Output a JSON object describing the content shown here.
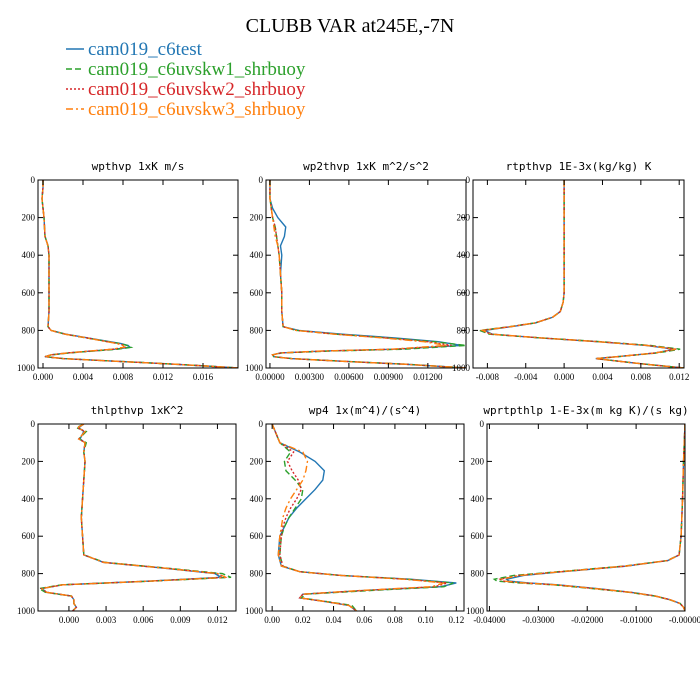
{
  "figure": {
    "title": "CLUBB VAR at245E,-7N"
  },
  "legend": [
    {
      "label": "cam019_c6test",
      "color": "#2277b4",
      "dash": "solid"
    },
    {
      "label": "cam019_c6uvskw1_shrbuoy",
      "color": "#2ca02c",
      "dash": "dash"
    },
    {
      "label": "cam019_c6uvskw2_shrbuoy",
      "color": "#d62728",
      "dash": "dot"
    },
    {
      "label": "cam019_c6uvskw3_shrbuoy",
      "color": "#ff7f0e",
      "dash": "dashdot"
    }
  ],
  "chart_data": [
    {
      "type": "line",
      "title": "wpthvp  1xK m/s",
      "xlim": [
        -0.0005,
        0.0195
      ],
      "ylim": [
        1000,
        0
      ],
      "xticks": [
        0.0,
        0.004,
        0.008,
        0.012,
        0.016
      ],
      "xtick_labels": [
        "0.000",
        "0.004",
        "0.008",
        "0.012",
        "0.016"
      ],
      "yticks": [
        0,
        200,
        400,
        600,
        800,
        1000
      ],
      "ytick_labels": [
        "0",
        "200",
        "400",
        "600",
        "800",
        "1000"
      ],
      "y": [
        0,
        40,
        100,
        150,
        200,
        300,
        350,
        400,
        500,
        600,
        700,
        780,
        800,
        820,
        840,
        860,
        870,
        880,
        890,
        900,
        910,
        920,
        930,
        940,
        950,
        960,
        970,
        980,
        990,
        1000
      ],
      "series": [
        {
          "x": [
            0.0,
            0.0,
            -0.0001,
            0.0,
            0.0001,
            0.0002,
            0.0005,
            0.0006,
            0.0006,
            0.0006,
            0.0006,
            0.0005,
            0.0008,
            0.0023,
            0.0045,
            0.0067,
            0.0078,
            0.0085,
            0.0087,
            0.0072,
            0.0048,
            0.0025,
            0.0008,
            0.0002,
            0.002,
            0.0057,
            0.0095,
            0.0132,
            0.0165,
            0.0195
          ]
        },
        {
          "x": [
            0.0,
            0.0,
            -0.0001,
            0.0,
            0.0001,
            0.0002,
            0.0005,
            0.0006,
            0.0006,
            0.0006,
            0.0006,
            0.0005,
            0.0008,
            0.0022,
            0.0043,
            0.0065,
            0.0077,
            0.0084,
            0.0088,
            0.0075,
            0.005,
            0.0026,
            0.0009,
            0.0002,
            0.0021,
            0.0058,
            0.0096,
            0.0133,
            0.0166,
            0.0195
          ]
        },
        {
          "x": [
            0.0,
            0.0,
            -0.0001,
            0.0,
            0.0001,
            0.0002,
            0.0005,
            0.0006,
            0.0006,
            0.0006,
            0.0006,
            0.0005,
            0.0008,
            0.0022,
            0.0044,
            0.0064,
            0.0075,
            0.0081,
            0.0082,
            0.007,
            0.0047,
            0.0024,
            0.0008,
            0.0002,
            0.002,
            0.0057,
            0.0095,
            0.0132,
            0.0165,
            0.0195
          ]
        },
        {
          "x": [
            0.0,
            0.0,
            -0.0001,
            0.0,
            0.0001,
            0.0002,
            0.0005,
            0.0006,
            0.0006,
            0.0006,
            0.0006,
            0.0005,
            0.0008,
            0.0022,
            0.0044,
            0.0064,
            0.0074,
            0.008,
            0.0081,
            0.0069,
            0.0046,
            0.0024,
            0.0008,
            0.0002,
            0.002,
            0.0057,
            0.0095,
            0.0132,
            0.0165,
            0.0195
          ]
        }
      ]
    },
    {
      "type": "line",
      "title": "wp2thvp  1xK m^2/s^2",
      "xlim": [
        -0.0003,
        0.0149
      ],
      "ylim": [
        1000,
        0
      ],
      "xticks": [
        0.0,
        0.003,
        0.006,
        0.009,
        0.012
      ],
      "xtick_labels": [
        "0.00000",
        "0.00300",
        "0.00600",
        "0.00900",
        "0.01200"
      ],
      "yticks": [
        0,
        200,
        400,
        600,
        800,
        1000
      ],
      "ytick_labels": [
        "0",
        "200",
        "400",
        "600",
        "800",
        "1000"
      ],
      "y": [
        0,
        50,
        100,
        150,
        200,
        250,
        300,
        350,
        400,
        500,
        600,
        700,
        780,
        800,
        820,
        840,
        860,
        880,
        900,
        910,
        920,
        930,
        940,
        950,
        960,
        970,
        980,
        1000
      ],
      "series": [
        {
          "x": [
            0.0,
            0.0,
            0.0,
            0.0002,
            0.0006,
            0.0012,
            0.0011,
            0.0008,
            0.0009,
            0.0008,
            0.0009,
            0.0009,
            0.001,
            0.0022,
            0.0055,
            0.0095,
            0.0128,
            0.0146,
            0.0095,
            0.004,
            0.0008,
            0.0002,
            0.0003,
            0.0016,
            0.0043,
            0.0072,
            0.0103,
            0.0149
          ]
        },
        {
          "x": [
            0.0,
            0.0,
            0.0,
            0.0001,
            0.0002,
            0.0004,
            0.0005,
            0.0006,
            0.0007,
            0.0008,
            0.0009,
            0.0009,
            0.001,
            0.002,
            0.005,
            0.009,
            0.0125,
            0.0149,
            0.0102,
            0.0045,
            0.0009,
            0.0002,
            0.0003,
            0.0017,
            0.0044,
            0.0073,
            0.0104,
            0.0149
          ]
        },
        {
          "x": [
            0.0,
            0.0,
            0.0,
            0.0001,
            0.0002,
            0.0004,
            0.0005,
            0.0006,
            0.0007,
            0.0008,
            0.0009,
            0.0009,
            0.001,
            0.002,
            0.005,
            0.0088,
            0.012,
            0.0138,
            0.0095,
            0.004,
            0.0008,
            0.0002,
            0.0003,
            0.0016,
            0.0043,
            0.0072,
            0.0103,
            0.0149
          ]
        },
        {
          "x": [
            0.0,
            0.0,
            0.0,
            0.0001,
            0.0002,
            0.0003,
            0.0004,
            0.0006,
            0.0007,
            0.0008,
            0.0009,
            0.0009,
            0.001,
            0.002,
            0.0049,
            0.0086,
            0.0117,
            0.0134,
            0.0092,
            0.0038,
            0.0008,
            0.0002,
            0.0003,
            0.0016,
            0.0043,
            0.0072,
            0.0103,
            0.0149
          ]
        }
      ]
    },
    {
      "type": "line",
      "title": "rtpthvp  1E-3x(kg/kg) K",
      "xlim": [
        -0.0095,
        0.0125
      ],
      "ylim": [
        1000,
        0
      ],
      "xticks": [
        -0.008,
        -0.004,
        0.0,
        0.004,
        0.008,
        0.012
      ],
      "xtick_labels": [
        "-0.008",
        "-0.004",
        "0.000",
        "0.004",
        "0.008",
        "0.012"
      ],
      "yticks": [
        0,
        200,
        400,
        600,
        800,
        1000
      ],
      "ytick_labels": [
        "0",
        "200",
        "400",
        "600",
        "800",
        "1000"
      ],
      "y": [
        0,
        200,
        400,
        600,
        650,
        700,
        730,
        760,
        780,
        800,
        820,
        840,
        860,
        880,
        900,
        920,
        940,
        950,
        960,
        980,
        1000
      ],
      "series": [
        {
          "x": [
            0.0,
            0.0,
            0.0,
            0.0,
            -0.0001,
            -0.0004,
            -0.0012,
            -0.003,
            -0.0055,
            -0.0083,
            -0.0075,
            -0.0025,
            0.0035,
            0.0085,
            0.0115,
            0.0095,
            0.0055,
            0.0033,
            0.005,
            0.0085,
            0.0125
          ]
        },
        {
          "x": [
            0.0,
            0.0,
            0.0,
            0.0,
            -0.0001,
            -0.0004,
            -0.0012,
            -0.003,
            -0.0057,
            -0.0088,
            -0.0078,
            -0.0024,
            0.0038,
            0.009,
            0.0121,
            0.0097,
            0.0056,
            0.0033,
            0.005,
            0.0085,
            0.0125
          ]
        },
        {
          "x": [
            0.0,
            0.0,
            0.0,
            0.0,
            -0.0001,
            -0.0004,
            -0.0012,
            -0.003,
            -0.0056,
            -0.0086,
            -0.0076,
            -0.0024,
            0.0036,
            0.0087,
            0.0117,
            0.0095,
            0.0055,
            0.0033,
            0.005,
            0.0085,
            0.0125
          ]
        },
        {
          "x": [
            0.0,
            0.0,
            0.0,
            0.0,
            -0.0001,
            -0.0004,
            -0.0012,
            -0.003,
            -0.0056,
            -0.0085,
            -0.0076,
            -0.0024,
            0.0035,
            0.0086,
            0.0116,
            0.0095,
            0.0055,
            0.0033,
            0.005,
            0.0085,
            0.0125
          ]
        }
      ]
    },
    {
      "type": "line",
      "title": "thlpthvp  1xK^2",
      "xlim": [
        -0.0025,
        0.0135
      ],
      "ylim": [
        1000,
        0
      ],
      "xticks": [
        0.0,
        0.003,
        0.006,
        0.009,
        0.012
      ],
      "xtick_labels": [
        "0.000",
        "0.003",
        "0.006",
        "0.009",
        "0.012"
      ],
      "yticks": [
        0,
        200,
        400,
        600,
        800,
        1000
      ],
      "ytick_labels": [
        "0",
        "200",
        "400",
        "600",
        "800",
        "1000"
      ],
      "y": [
        0,
        20,
        40,
        80,
        100,
        150,
        200,
        300,
        400,
        500,
        600,
        700,
        740,
        770,
        800,
        820,
        840,
        860,
        880,
        900,
        920,
        940,
        960,
        980,
        1000
      ],
      "series": [
        {
          "x": [
            0.0012,
            0.0008,
            0.0012,
            0.0009,
            0.0013,
            0.0012,
            0.0013,
            0.0012,
            0.0011,
            0.001,
            0.0011,
            0.0012,
            0.0028,
            0.0075,
            0.0118,
            0.0123,
            0.0065,
            -0.0005,
            -0.0022,
            -0.0018,
            0.0002,
            0.0004,
            0.0004,
            0.0006,
            0.0003
          ]
        },
        {
          "x": [
            0.0012,
            0.0006,
            0.0014,
            0.0008,
            0.0014,
            0.0012,
            0.0013,
            0.0012,
            0.0011,
            0.001,
            0.0011,
            0.0012,
            0.0029,
            0.0078,
            0.0124,
            0.0131,
            0.0068,
            -0.0006,
            -0.0024,
            -0.0019,
            0.0002,
            0.0004,
            0.0004,
            0.0006,
            0.0003
          ]
        },
        {
          "x": [
            0.0012,
            0.0007,
            0.0013,
            0.0008,
            0.0013,
            0.0012,
            0.0013,
            0.0012,
            0.0011,
            0.001,
            0.0011,
            0.0012,
            0.0028,
            0.0076,
            0.012,
            0.0126,
            0.0066,
            -0.0005,
            -0.0022,
            -0.0018,
            0.0002,
            0.0004,
            0.0004,
            0.0006,
            0.0003
          ]
        },
        {
          "x": [
            0.0012,
            0.0007,
            0.0013,
            0.0008,
            0.0013,
            0.0012,
            0.0013,
            0.0012,
            0.0011,
            0.001,
            0.0011,
            0.0012,
            0.0028,
            0.0076,
            0.012,
            0.0127,
            0.0066,
            -0.0005,
            -0.0022,
            -0.0018,
            0.0002,
            0.0004,
            0.0004,
            0.0006,
            0.0003
          ]
        }
      ]
    },
    {
      "type": "line",
      "title": "wp4  1x(m^4)/(s^4)",
      "xlim": [
        -0.004,
        0.125
      ],
      "ylim": [
        1000,
        0
      ],
      "xticks": [
        0.0,
        0.02,
        0.04,
        0.06,
        0.08,
        0.1,
        0.12
      ],
      "xtick_labels": [
        "0.00",
        "0.02",
        "0.04",
        "0.06",
        "0.08",
        "0.10",
        "0.12"
      ],
      "yticks": [
        0,
        200,
        400,
        600,
        800,
        1000
      ],
      "ytick_labels": [
        "0",
        "200",
        "400",
        "600",
        "800",
        "1000"
      ],
      "y": [
        0,
        100,
        150,
        200,
        250,
        300,
        350,
        400,
        450,
        500,
        550,
        600,
        700,
        760,
        790,
        810,
        830,
        850,
        870,
        890,
        910,
        930,
        950,
        970,
        1000
      ],
      "series": [
        {
          "x": [
            0.0,
            0.005,
            0.018,
            0.028,
            0.034,
            0.033,
            0.028,
            0.022,
            0.016,
            0.011,
            0.008,
            0.005,
            0.004,
            0.006,
            0.018,
            0.045,
            0.09,
            0.12,
            0.11,
            0.06,
            0.02,
            0.018,
            0.035,
            0.05,
            0.055
          ]
        },
        {
          "x": [
            0.0,
            0.005,
            0.012,
            0.008,
            0.009,
            0.015,
            0.02,
            0.019,
            0.015,
            0.011,
            0.008,
            0.006,
            0.005,
            0.007,
            0.018,
            0.045,
            0.088,
            0.118,
            0.112,
            0.065,
            0.022,
            0.019,
            0.036,
            0.052,
            0.055
          ]
        },
        {
          "x": [
            0.0,
            0.005,
            0.014,
            0.01,
            0.013,
            0.017,
            0.019,
            0.016,
            0.012,
            0.009,
            0.007,
            0.006,
            0.005,
            0.007,
            0.018,
            0.045,
            0.087,
            0.114,
            0.106,
            0.06,
            0.02,
            0.018,
            0.035,
            0.05,
            0.055
          ]
        },
        {
          "x": [
            0.0,
            0.005,
            0.02,
            0.023,
            0.022,
            0.02,
            0.016,
            0.012,
            0.009,
            0.007,
            0.006,
            0.005,
            0.004,
            0.006,
            0.018,
            0.045,
            0.086,
            0.112,
            0.104,
            0.058,
            0.02,
            0.018,
            0.035,
            0.05,
            0.055
          ]
        }
      ]
    },
    {
      "type": "line",
      "title": "wprtpthlp  1-E-3x(m kg K)/(s kg)",
      "xlim": [
        -0.0405,
        0.0
      ],
      "ylim": [
        1000,
        0
      ],
      "xticks": [
        -0.04,
        -0.03,
        -0.02,
        -0.01,
        0.0
      ],
      "xtick_labels": [
        "-0.04000",
        "-0.03000",
        "-0.02000",
        "-0.01000",
        "-0.00000"
      ],
      "yticks": [
        0,
        200,
        400,
        600,
        800,
        1000
      ],
      "ytick_labels": [
        "0",
        "200",
        "400",
        "600",
        "800",
        "1000"
      ],
      "y": [
        0,
        200,
        400,
        600,
        700,
        730,
        760,
        790,
        810,
        830,
        840,
        850,
        860,
        880,
        900,
        920,
        940,
        960,
        980,
        1000
      ],
      "series": [
        {
          "x": [
            0.0,
            -0.0003,
            -0.0005,
            -0.0008,
            -0.0012,
            -0.0035,
            -0.012,
            -0.025,
            -0.033,
            -0.0365,
            -0.036,
            -0.032,
            -0.026,
            -0.018,
            -0.011,
            -0.006,
            -0.003,
            -0.001,
            -0.0003,
            0.0
          ]
        },
        {
          "x": [
            0.0,
            -0.0003,
            -0.0005,
            -0.0008,
            -0.0012,
            -0.0036,
            -0.0125,
            -0.026,
            -0.035,
            -0.039,
            -0.0385,
            -0.034,
            -0.027,
            -0.019,
            -0.0115,
            -0.0062,
            -0.0031,
            -0.001,
            -0.0003,
            0.0
          ]
        },
        {
          "x": [
            0.0,
            -0.0003,
            -0.0005,
            -0.0008,
            -0.0012,
            -0.0035,
            -0.0122,
            -0.0255,
            -0.034,
            -0.0378,
            -0.0372,
            -0.033,
            -0.0265,
            -0.0185,
            -0.0112,
            -0.0061,
            -0.003,
            -0.001,
            -0.0003,
            0.0
          ]
        },
        {
          "x": [
            0.0,
            -0.0003,
            -0.0005,
            -0.0008,
            -0.0012,
            -0.0035,
            -0.0122,
            -0.0254,
            -0.0338,
            -0.0375,
            -0.037,
            -0.0328,
            -0.0264,
            -0.0184,
            -0.0111,
            -0.006,
            -0.003,
            -0.001,
            -0.0003,
            0.0
          ]
        }
      ]
    }
  ]
}
